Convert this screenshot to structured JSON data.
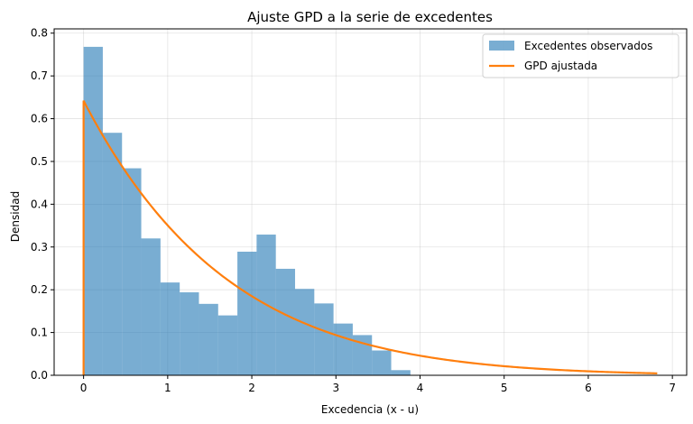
{
  "chart_data": {
    "type": "bar",
    "title": "Ajuste GPD a la serie de excedentes",
    "xlabel": "Excedencia (x - u)",
    "ylabel": "Densidad",
    "xlim": [
      -0.35,
      7.17
    ],
    "ylim": [
      0,
      0.81
    ],
    "xticks": [
      "0",
      "1",
      "2",
      "3",
      "4",
      "5",
      "6",
      "7"
    ],
    "yticks": [
      "0.0",
      "0.1",
      "0.2",
      "0.3",
      "0.4",
      "0.5",
      "0.6",
      "0.7",
      "0.8"
    ],
    "grid": true,
    "legend_position": "top-right",
    "histogram": {
      "name": "Excedentes observados",
      "color": "#1f77b4",
      "alpha": 0.6,
      "bin_edges": [
        0,
        0.2286,
        0.4571,
        0.6857,
        0.9143,
        1.1429,
        1.3714,
        1.6,
        1.8286,
        2.0571,
        2.2857,
        2.5143,
        2.7429,
        2.9714,
        3.2,
        3.4286,
        3.6571,
        3.8857
      ],
      "densities": [
        0.768,
        0.567,
        0.484,
        0.32,
        0.217,
        0.194,
        0.167,
        0.14,
        0.289,
        0.329,
        0.249,
        0.202,
        0.168,
        0.121,
        0.094,
        0.058,
        0.012
      ]
    },
    "fit": {
      "name": "GPD ajustada",
      "color": "#ff7f0e",
      "x_min": 0,
      "x_max": 6.82,
      "peak_density": 0.642,
      "scale": 1.56,
      "shape": -0.08
    }
  }
}
